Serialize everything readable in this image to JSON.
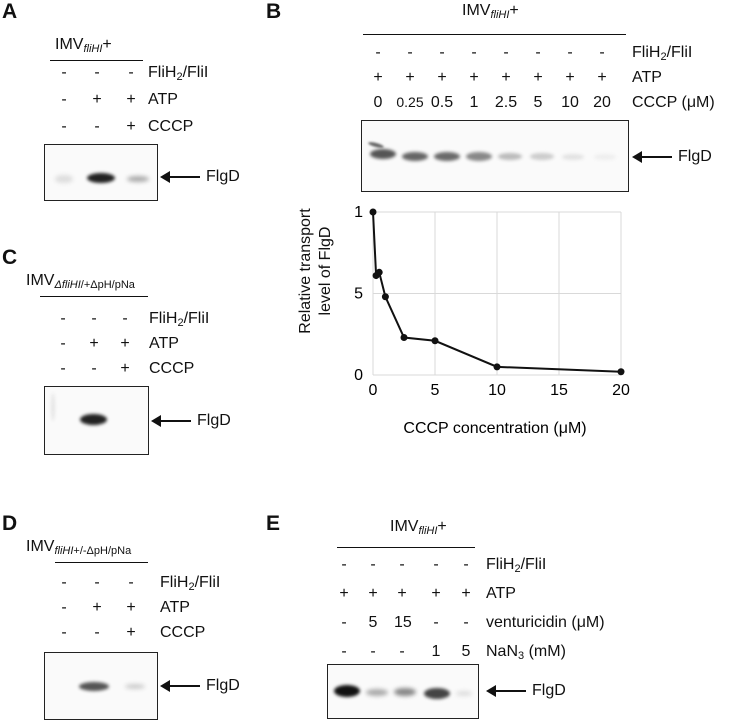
{
  "panels": {
    "A": {
      "letter": "A",
      "title_main": "IMV",
      "title_sub": "fliHI",
      "title_suffix": "+",
      "rows": [
        {
          "label_main": "FliH",
          "label_sub": "2",
          "label_rest": "/FliI",
          "signs": [
            "-",
            "-",
            "-"
          ]
        },
        {
          "label_main": "ATP",
          "label_sub": "",
          "label_rest": "",
          "signs": [
            "-",
            "+",
            "+"
          ]
        },
        {
          "label_main": "CCCP",
          "label_sub": "",
          "label_rest": "",
          "signs": [
            "-",
            "-",
            "+"
          ]
        }
      ],
      "band_label": "FlgD"
    },
    "B": {
      "letter": "B",
      "title_main": "IMV",
      "title_sub": "fliHI",
      "title_suffix": "+",
      "rows": [
        {
          "label_main": "FliH",
          "label_sub": "2",
          "label_rest": "/FliI",
          "signs": [
            "-",
            "-",
            "-",
            "-",
            "-",
            "-",
            "-",
            "-"
          ]
        },
        {
          "label_main": "ATP",
          "label_sub": "",
          "label_rest": "",
          "signs": [
            "+",
            "+",
            "+",
            "+",
            "+",
            "+",
            "+",
            "+"
          ]
        },
        {
          "label_main": "CCCP (μM)",
          "label_sub": "",
          "label_rest": "",
          "signs": [
            "0",
            "0.25",
            "0.5",
            "1",
            "2.5",
            "5",
            "10",
            "20"
          ]
        }
      ],
      "band_label": "FlgD"
    },
    "C": {
      "letter": "C",
      "title_main": "IMV",
      "title_sub": "ΔfliHI",
      "title_suffix": "/+ΔpH/pNa",
      "rows": [
        {
          "label_main": "FliH",
          "label_sub": "2",
          "label_rest": "/FliI",
          "signs": [
            "-",
            "-",
            "-"
          ]
        },
        {
          "label_main": "ATP",
          "label_sub": "",
          "label_rest": "",
          "signs": [
            "-",
            "+",
            "+"
          ]
        },
        {
          "label_main": "CCCP",
          "label_sub": "",
          "label_rest": "",
          "signs": [
            "-",
            "-",
            "+"
          ]
        }
      ],
      "band_label": "FlgD"
    },
    "D": {
      "letter": "D",
      "title_main": "IMV",
      "title_sub": "fliHI",
      "title_suffix": "+/-ΔpH/pNa",
      "rows": [
        {
          "label_main": "FliH",
          "label_sub": "2",
          "label_rest": "/FliI",
          "signs": [
            "-",
            "-",
            "-"
          ]
        },
        {
          "label_main": "ATP",
          "label_sub": "",
          "label_rest": "",
          "signs": [
            "-",
            "+",
            "+"
          ]
        },
        {
          "label_main": "CCCP",
          "label_sub": "",
          "label_rest": "",
          "signs": [
            "-",
            "-",
            "+"
          ]
        }
      ],
      "band_label": "FlgD"
    },
    "E": {
      "letter": "E",
      "title_main": "IMV",
      "title_sub": "fliHI",
      "title_suffix": "+",
      "rows": [
        {
          "label_main": "FliH",
          "label_sub": "2",
          "label_rest": "/FliI",
          "signs": [
            "-",
            "-",
            "-",
            "-",
            "-"
          ]
        },
        {
          "label_main": "ATP",
          "label_sub": "",
          "label_rest": "",
          "signs": [
            "+",
            "+",
            "+",
            "+",
            "+"
          ]
        },
        {
          "label_main": "venturicidin (μM)",
          "label_sub": "",
          "label_rest": "",
          "signs": [
            "-",
            "5",
            "15",
            "-",
            "-"
          ]
        },
        {
          "label_main": "NaN",
          "label_sub": "3",
          "label_rest": " (mM)",
          "signs": [
            "-",
            "-",
            "-",
            "1",
            "5"
          ]
        }
      ],
      "band_label": "FlgD"
    }
  },
  "chart_data": {
    "type": "line",
    "xlabel": "CCCP concentration (μM)",
    "ylabel": "Relative transport level of FlgD",
    "ylabel_lines": [
      "Relative transport",
      "level of FlgD"
    ],
    "xlim": [
      0,
      20
    ],
    "ylim": [
      0,
      1
    ],
    "xticks": [
      0,
      5,
      10,
      15,
      20
    ],
    "yticks": [
      0,
      0.5,
      1
    ],
    "grid": true,
    "series": [
      {
        "x": [
          0,
          0.25,
          0.5,
          1,
          2.5,
          5,
          10,
          20
        ],
        "y": [
          1.0,
          0.61,
          0.63,
          0.48,
          0.23,
          0.21,
          0.05,
          0.02
        ]
      }
    ]
  }
}
